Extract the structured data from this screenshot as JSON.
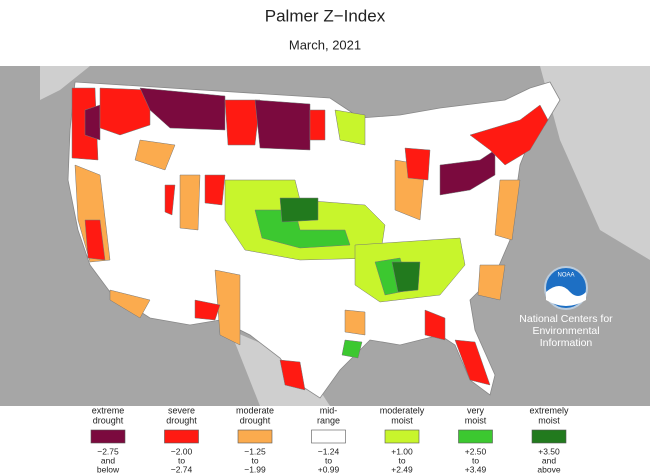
{
  "header": {
    "title": "Palmer Z−Index",
    "subtitle": "March, 2021"
  },
  "legend": [
    {
      "label": [
        "extreme",
        "drought"
      ],
      "range": [
        "−2.75",
        "and",
        "below"
      ],
      "color": "#7b0a3e"
    },
    {
      "label": [
        "severe",
        "drought"
      ],
      "range": [
        "−2.00",
        "to",
        "−2.74"
      ],
      "color": "#ff1a12"
    },
    {
      "label": [
        "moderate",
        "drought"
      ],
      "range": [
        "−1.25",
        "to",
        "−1.99"
      ],
      "color": "#fbab4e"
    },
    {
      "label": [
        "mid-",
        "range"
      ],
      "range": [
        "−1.24",
        "to",
        "+0.99"
      ],
      "color": "#ffffff"
    },
    {
      "label": [
        "moderately",
        "moist"
      ],
      "range": [
        "+1.00",
        "to",
        "+2.49"
      ],
      "color": "#c8f52c"
    },
    {
      "label": [
        "very",
        "moist"
      ],
      "range": [
        "+2.50",
        "to",
        "+3.49"
      ],
      "color": "#3cc830"
    },
    {
      "label": [
        "extremely",
        "moist"
      ],
      "range": [
        "+3.50",
        "and",
        "above"
      ],
      "color": "#227a1e"
    }
  ],
  "noaa": {
    "logo": "NOAA",
    "lines": [
      "National Centers for",
      "Environmental",
      "Information"
    ]
  }
}
